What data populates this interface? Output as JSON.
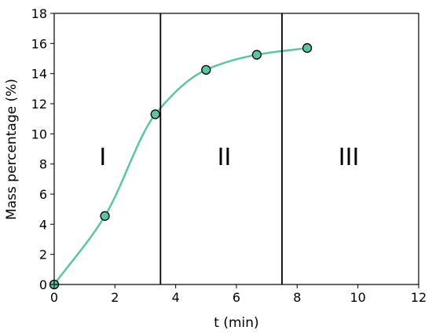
{
  "chart_data": {
    "type": "line",
    "title": "",
    "xlabel": "t (min)",
    "ylabel": "Mass percentage (%)",
    "xlim": [
      0,
      12
    ],
    "ylim": [
      0,
      18
    ],
    "xticks": [
      0,
      2,
      4,
      6,
      8,
      10,
      12
    ],
    "yticks": [
      0,
      2,
      4,
      6,
      8,
      10,
      12,
      14,
      16,
      18
    ],
    "grid": false,
    "series": [
      {
        "x": [
          0,
          1.67,
          3.33,
          5.0,
          6.67,
          8.33
        ],
        "y": [
          0,
          4.55,
          11.3,
          14.25,
          15.25,
          15.7
        ],
        "color": "#5cc4a0",
        "marker": "circle",
        "smooth": true
      }
    ],
    "vlines": [
      3.5,
      7.5
    ],
    "regions": [
      {
        "label": "I",
        "x": 1.6,
        "y": 8.5
      },
      {
        "label": "II",
        "x": 5.6,
        "y": 8.5
      },
      {
        "label": "III",
        "x": 9.7,
        "y": 8.5
      }
    ],
    "colors": {
      "curve": "#5cc4a0",
      "marker_fill": "#5cc4a0",
      "marker_edge": "#000000"
    }
  }
}
